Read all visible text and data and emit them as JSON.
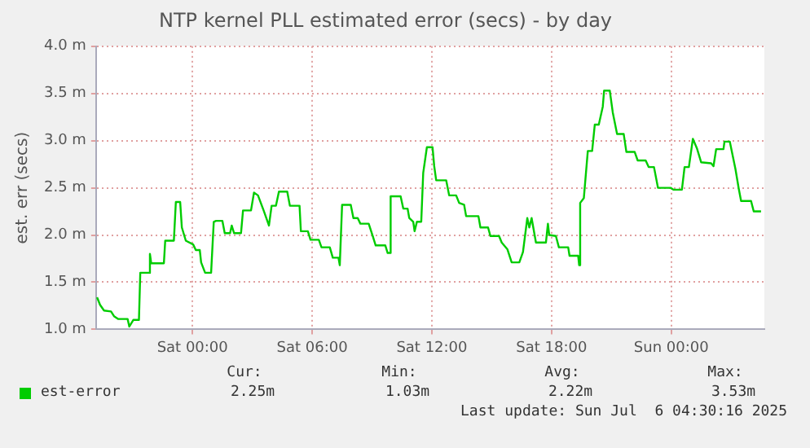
{
  "chart_data": {
    "type": "line",
    "title": "NTP kernel PLL estimated error (secs) - by day",
    "ylabel": "est. err (secs)",
    "x": [
      "2025-07-04T19:13",
      "2025-07-04T19:22",
      "2025-07-04T19:34",
      "2025-07-04T19:55",
      "2025-07-04T20:04",
      "2025-07-04T20:17",
      "2025-07-04T20:45",
      "2025-07-04T20:50",
      "2025-07-04T21:02",
      "2025-07-04T21:19",
      "2025-07-04T21:23",
      "2025-07-04T21:49",
      "2025-07-04T21:52",
      "2025-07-04T21:56",
      "2025-07-04T22:34",
      "2025-07-04T22:38",
      "2025-07-04T23:04",
      "2025-07-04T23:10",
      "2025-07-04T23:23",
      "2025-07-04T23:28",
      "2025-07-04T23:40",
      "2025-07-05T00:02",
      "2025-07-05T00:10",
      "2025-07-05T00:22",
      "2025-07-05T00:26",
      "2025-07-05T00:38",
      "2025-07-05T00:56",
      "2025-07-05T01:04",
      "2025-07-05T01:11",
      "2025-07-05T01:30",
      "2025-07-05T01:37",
      "2025-07-05T01:53",
      "2025-07-05T01:58",
      "2025-07-05T02:05",
      "2025-07-05T02:26",
      "2025-07-05T02:32",
      "2025-07-05T02:56",
      "2025-07-05T03:05",
      "2025-07-05T03:17",
      "2025-07-05T03:34",
      "2025-07-05T03:50",
      "2025-07-05T03:58",
      "2025-07-05T04:11",
      "2025-07-05T04:20",
      "2025-07-05T04:45",
      "2025-07-05T04:53",
      "2025-07-05T05:22",
      "2025-07-05T05:26",
      "2025-07-05T05:47",
      "2025-07-05T05:55",
      "2025-07-05T06:20",
      "2025-07-05T06:28",
      "2025-07-05T06:53",
      "2025-07-05T07:02",
      "2025-07-05T07:19",
      "2025-07-05T07:23",
      "2025-07-05T07:30",
      "2025-07-05T07:56",
      "2025-07-05T08:04",
      "2025-07-05T08:17",
      "2025-07-05T08:25",
      "2025-07-05T08:50",
      "2025-07-05T09:02",
      "2025-07-05T09:11",
      "2025-07-05T09:40",
      "2025-07-05T09:47",
      "2025-07-05T09:53",
      "2025-07-05T09:56",
      "2025-07-05T10:26",
      "2025-07-05T10:34",
      "2025-07-05T10:47",
      "2025-07-05T10:52",
      "2025-07-05T11:04",
      "2025-07-05T11:08",
      "2025-07-05T11:15",
      "2025-07-05T11:28",
      "2025-07-05T11:34",
      "2025-07-05T11:45",
      "2025-07-05T12:02",
      "2025-07-05T12:07",
      "2025-07-05T12:13",
      "2025-07-05T12:43",
      "2025-07-05T12:52",
      "2025-07-05T13:13",
      "2025-07-05T13:22",
      "2025-07-05T13:37",
      "2025-07-05T13:43",
      "2025-07-05T14:20",
      "2025-07-05T14:26",
      "2025-07-05T14:49",
      "2025-07-05T14:56",
      "2025-07-05T15:22",
      "2025-07-05T15:30",
      "2025-07-05T15:47",
      "2025-07-05T16:00",
      "2025-07-05T16:23",
      "2025-07-05T16:34",
      "2025-07-05T16:47",
      "2025-07-05T16:53",
      "2025-07-05T17:00",
      "2025-07-05T17:13",
      "2025-07-05T17:43",
      "2025-07-05T17:49",
      "2025-07-05T17:53",
      "2025-07-05T18:13",
      "2025-07-05T18:22",
      "2025-07-05T18:50",
      "2025-07-05T18:54",
      "2025-07-05T19:20",
      "2025-07-05T19:23",
      "2025-07-05T19:26",
      "2025-07-05T19:37",
      "2025-07-05T19:49",
      "2025-07-05T20:02",
      "2025-07-05T20:10",
      "2025-07-05T20:22",
      "2025-07-05T20:34",
      "2025-07-05T20:38",
      "2025-07-05T20:55",
      "2025-07-05T21:04",
      "2025-07-05T21:17",
      "2025-07-05T21:37",
      "2025-07-05T21:45",
      "2025-07-05T22:10",
      "2025-07-05T22:19",
      "2025-07-05T22:43",
      "2025-07-05T22:52",
      "2025-07-05T23:08",
      "2025-07-05T23:20",
      "2025-07-05T23:58",
      "2025-07-06T00:07",
      "2025-07-06T00:32",
      "2025-07-06T00:40",
      "2025-07-06T00:53",
      "2025-07-06T01:05",
      "2025-07-06T01:17",
      "2025-07-06T01:30",
      "2025-07-06T02:00",
      "2025-07-06T02:07",
      "2025-07-06T02:15",
      "2025-07-06T02:37",
      "2025-07-06T02:40",
      "2025-07-06T02:56",
      "2025-07-06T03:13",
      "2025-07-06T03:23",
      "2025-07-06T03:30",
      "2025-07-06T04:00",
      "2025-07-06T04:08",
      "2025-07-06T04:30"
    ],
    "series": [
      {
        "name": "est-error",
        "color": "#00cc00",
        "values": [
          1.34,
          1.26,
          1.2,
          1.19,
          1.14,
          1.11,
          1.11,
          1.03,
          1.1,
          1.1,
          1.6,
          1.6,
          1.8,
          1.7,
          1.7,
          1.94,
          1.94,
          2.35,
          2.35,
          2.08,
          1.94,
          1.9,
          1.84,
          1.84,
          1.71,
          1.6,
          1.6,
          2.14,
          2.15,
          2.15,
          2.02,
          2.02,
          2.1,
          2.02,
          2.02,
          2.26,
          2.26,
          2.45,
          2.42,
          2.26,
          2.1,
          2.31,
          2.31,
          2.46,
          2.46,
          2.31,
          2.31,
          2.04,
          2.04,
          1.95,
          1.95,
          1.87,
          1.87,
          1.76,
          1.76,
          1.68,
          2.32,
          2.32,
          2.18,
          2.18,
          2.12,
          2.12,
          1.99,
          1.89,
          1.89,
          1.81,
          1.81,
          2.41,
          2.41,
          2.28,
          2.28,
          2.18,
          2.14,
          2.04,
          2.14,
          2.14,
          2.66,
          2.93,
          2.93,
          2.73,
          2.58,
          2.58,
          2.42,
          2.42,
          2.34,
          2.32,
          2.2,
          2.2,
          2.08,
          2.08,
          1.99,
          1.99,
          1.92,
          1.85,
          1.71,
          1.71,
          1.82,
          2.18,
          2.08,
          2.18,
          1.92,
          1.92,
          2.12,
          2.0,
          1.99,
          1.87,
          1.87,
          1.78,
          1.78,
          1.68,
          2.34,
          2.39,
          2.89,
          2.89,
          3.17,
          3.17,
          3.36,
          3.53,
          3.53,
          3.3,
          3.07,
          3.07,
          2.88,
          2.88,
          2.79,
          2.79,
          2.72,
          2.72,
          2.5,
          2.5,
          2.48,
          2.48,
          2.72,
          2.72,
          3.02,
          2.92,
          2.77,
          2.76,
          2.73,
          2.91,
          2.91,
          2.99,
          2.99,
          2.7,
          2.49,
          2.36,
          2.36,
          2.25,
          2.25
        ]
      }
    ],
    "xlim": [
      "2025-07-04T19:10",
      "2025-07-06T04:40"
    ],
    "xticks": [
      {
        "value": "2025-07-05T00:00",
        "label": "Sat 00:00"
      },
      {
        "value": "2025-07-05T06:00",
        "label": "Sat 06:00"
      },
      {
        "value": "2025-07-05T12:00",
        "label": "Sat 12:00"
      },
      {
        "value": "2025-07-05T18:00",
        "label": "Sat 18:00"
      },
      {
        "value": "2025-07-06T00:00",
        "label": "Sun 00:00"
      }
    ],
    "ylim": [
      1,
      4
    ],
    "yticks": [
      {
        "value": 1,
        "label": "1.0 m"
      },
      {
        "value": 1.5,
        "label": "1.5 m"
      },
      {
        "value": 2,
        "label": "2.0 m"
      },
      {
        "value": 2.5,
        "label": "2.5 m"
      },
      {
        "value": 3,
        "label": "3.0 m"
      },
      {
        "value": 3.5,
        "label": "3.5 m"
      },
      {
        "value": 4,
        "label": "4.0 m"
      }
    ],
    "grid": true,
    "legend": "bottom",
    "marker": "none",
    "line_style": "solid",
    "annotations": [
      "Cur:",
      "Min:",
      "Avg:",
      "Max:",
      "2.25m",
      "1.03m",
      "2.22m",
      "3.53m",
      "Last update: Sun Jul  6 04:30:16 2025"
    ]
  }
}
